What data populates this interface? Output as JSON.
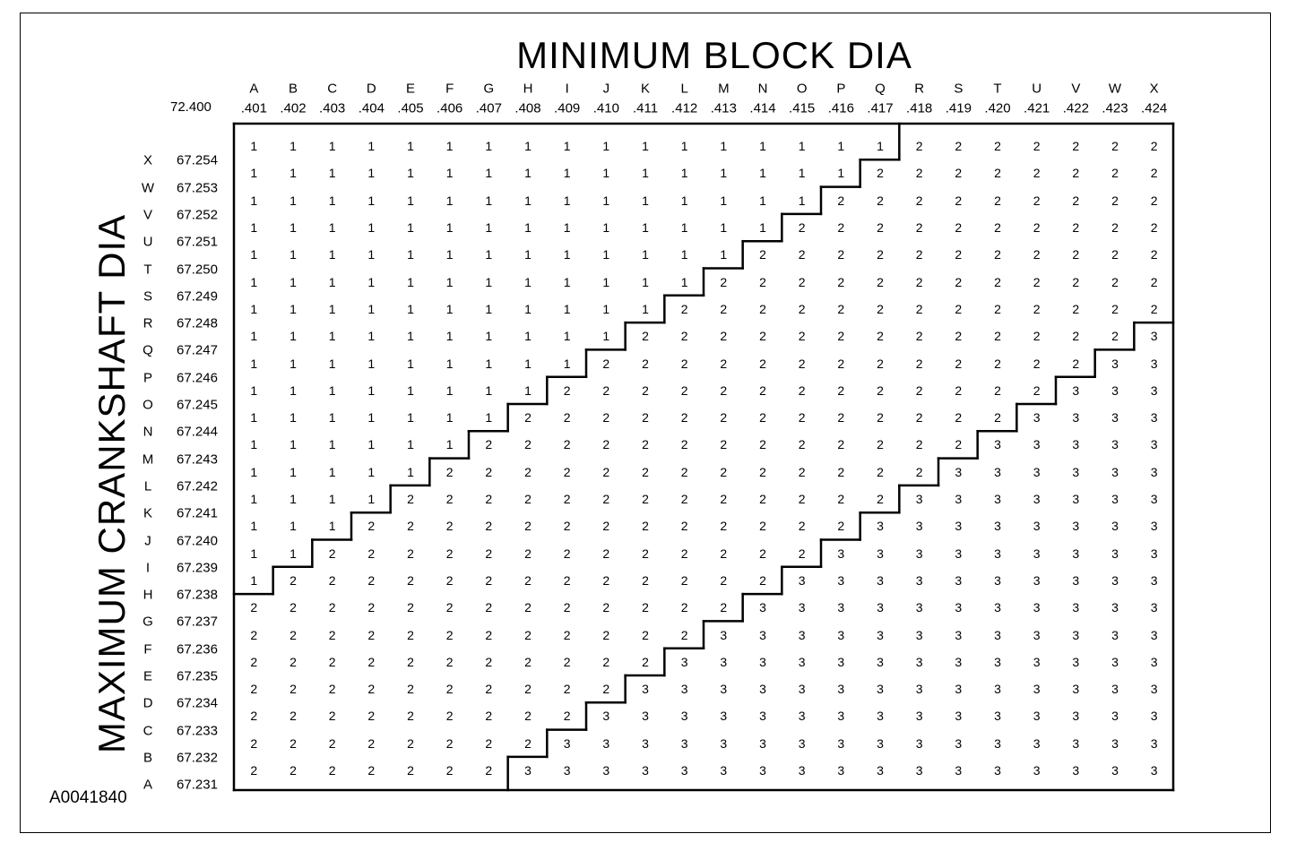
{
  "title": "MINIMUM BLOCK DIA",
  "vertical_title": "MAXIMUM CRANKSHAFT DIA",
  "figure_id": "A0041840",
  "block_base": "72.400",
  "columns": [
    {
      "letter": "A",
      "value": ".401"
    },
    {
      "letter": "B",
      "value": ".402"
    },
    {
      "letter": "C",
      "value": ".403"
    },
    {
      "letter": "D",
      "value": ".404"
    },
    {
      "letter": "E",
      "value": ".405"
    },
    {
      "letter": "F",
      "value": ".406"
    },
    {
      "letter": "G",
      "value": ".407"
    },
    {
      "letter": "H",
      "value": ".408"
    },
    {
      "letter": "I",
      "value": ".409"
    },
    {
      "letter": "J",
      "value": ".410"
    },
    {
      "letter": "K",
      "value": ".411"
    },
    {
      "letter": "L",
      "value": ".412"
    },
    {
      "letter": "M",
      "value": ".413"
    },
    {
      "letter": "N",
      "value": ".414"
    },
    {
      "letter": "O",
      "value": ".415"
    },
    {
      "letter": "P",
      "value": ".416"
    },
    {
      "letter": "Q",
      "value": ".417"
    },
    {
      "letter": "R",
      "value": ".418"
    },
    {
      "letter": "S",
      "value": ".419"
    },
    {
      "letter": "T",
      "value": ".420"
    },
    {
      "letter": "U",
      "value": ".421"
    },
    {
      "letter": "V",
      "value": ".422"
    },
    {
      "letter": "W",
      "value": ".423"
    },
    {
      "letter": "X",
      "value": ".424"
    }
  ],
  "rows": [
    {
      "letter": "X",
      "value": "67.254"
    },
    {
      "letter": "W",
      "value": "67.253"
    },
    {
      "letter": "V",
      "value": "67.252"
    },
    {
      "letter": "U",
      "value": "67.251"
    },
    {
      "letter": "T",
      "value": "67.250"
    },
    {
      "letter": "S",
      "value": "67.249"
    },
    {
      "letter": "R",
      "value": "67.248"
    },
    {
      "letter": "Q",
      "value": "67.247"
    },
    {
      "letter": "P",
      "value": "67.246"
    },
    {
      "letter": "O",
      "value": "67.245"
    },
    {
      "letter": "N",
      "value": "67.244"
    },
    {
      "letter": "M",
      "value": "67.243"
    },
    {
      "letter": "L",
      "value": "67.242"
    },
    {
      "letter": "K",
      "value": "67.241"
    },
    {
      "letter": "J",
      "value": "67.240"
    },
    {
      "letter": "I",
      "value": "67.239"
    },
    {
      "letter": "H",
      "value": "67.238"
    },
    {
      "letter": "G",
      "value": "67.237"
    },
    {
      "letter": "F",
      "value": "67.236"
    },
    {
      "letter": "E",
      "value": "67.235"
    },
    {
      "letter": "D",
      "value": "67.234"
    },
    {
      "letter": "C",
      "value": "67.233"
    },
    {
      "letter": "B",
      "value": "67.232"
    },
    {
      "letter": "A",
      "value": "67.231"
    }
  ],
  "grid": [
    [
      1,
      1,
      1,
      1,
      1,
      1,
      1,
      1,
      1,
      1,
      1,
      1,
      1,
      1,
      1,
      1,
      1,
      2,
      2,
      2,
      2,
      2,
      2,
      2
    ],
    [
      1,
      1,
      1,
      1,
      1,
      1,
      1,
      1,
      1,
      1,
      1,
      1,
      1,
      1,
      1,
      1,
      2,
      2,
      2,
      2,
      2,
      2,
      2,
      2
    ],
    [
      1,
      1,
      1,
      1,
      1,
      1,
      1,
      1,
      1,
      1,
      1,
      1,
      1,
      1,
      1,
      2,
      2,
      2,
      2,
      2,
      2,
      2,
      2,
      2
    ],
    [
      1,
      1,
      1,
      1,
      1,
      1,
      1,
      1,
      1,
      1,
      1,
      1,
      1,
      1,
      2,
      2,
      2,
      2,
      2,
      2,
      2,
      2,
      2,
      2
    ],
    [
      1,
      1,
      1,
      1,
      1,
      1,
      1,
      1,
      1,
      1,
      1,
      1,
      1,
      2,
      2,
      2,
      2,
      2,
      2,
      2,
      2,
      2,
      2,
      2
    ],
    [
      1,
      1,
      1,
      1,
      1,
      1,
      1,
      1,
      1,
      1,
      1,
      1,
      2,
      2,
      2,
      2,
      2,
      2,
      2,
      2,
      2,
      2,
      2,
      2
    ],
    [
      1,
      1,
      1,
      1,
      1,
      1,
      1,
      1,
      1,
      1,
      1,
      2,
      2,
      2,
      2,
      2,
      2,
      2,
      2,
      2,
      2,
      2,
      2,
      2
    ],
    [
      1,
      1,
      1,
      1,
      1,
      1,
      1,
      1,
      1,
      1,
      2,
      2,
      2,
      2,
      2,
      2,
      2,
      2,
      2,
      2,
      2,
      2,
      2,
      3
    ],
    [
      1,
      1,
      1,
      1,
      1,
      1,
      1,
      1,
      1,
      2,
      2,
      2,
      2,
      2,
      2,
      2,
      2,
      2,
      2,
      2,
      2,
      2,
      3,
      3
    ],
    [
      1,
      1,
      1,
      1,
      1,
      1,
      1,
      1,
      2,
      2,
      2,
      2,
      2,
      2,
      2,
      2,
      2,
      2,
      2,
      2,
      2,
      3,
      3,
      3
    ],
    [
      1,
      1,
      1,
      1,
      1,
      1,
      1,
      2,
      2,
      2,
      2,
      2,
      2,
      2,
      2,
      2,
      2,
      2,
      2,
      2,
      3,
      3,
      3,
      3
    ],
    [
      1,
      1,
      1,
      1,
      1,
      1,
      2,
      2,
      2,
      2,
      2,
      2,
      2,
      2,
      2,
      2,
      2,
      2,
      2,
      3,
      3,
      3,
      3,
      3
    ],
    [
      1,
      1,
      1,
      1,
      1,
      2,
      2,
      2,
      2,
      2,
      2,
      2,
      2,
      2,
      2,
      2,
      2,
      2,
      3,
      3,
      3,
      3,
      3,
      3
    ],
    [
      1,
      1,
      1,
      1,
      2,
      2,
      2,
      2,
      2,
      2,
      2,
      2,
      2,
      2,
      2,
      2,
      2,
      3,
      3,
      3,
      3,
      3,
      3,
      3
    ],
    [
      1,
      1,
      1,
      2,
      2,
      2,
      2,
      2,
      2,
      2,
      2,
      2,
      2,
      2,
      2,
      2,
      3,
      3,
      3,
      3,
      3,
      3,
      3,
      3
    ],
    [
      1,
      1,
      2,
      2,
      2,
      2,
      2,
      2,
      2,
      2,
      2,
      2,
      2,
      2,
      2,
      3,
      3,
      3,
      3,
      3,
      3,
      3,
      3,
      3
    ],
    [
      1,
      2,
      2,
      2,
      2,
      2,
      2,
      2,
      2,
      2,
      2,
      2,
      2,
      2,
      3,
      3,
      3,
      3,
      3,
      3,
      3,
      3,
      3,
      3
    ],
    [
      2,
      2,
      2,
      2,
      2,
      2,
      2,
      2,
      2,
      2,
      2,
      2,
      2,
      3,
      3,
      3,
      3,
      3,
      3,
      3,
      3,
      3,
      3,
      3
    ],
    [
      2,
      2,
      2,
      2,
      2,
      2,
      2,
      2,
      2,
      2,
      2,
      2,
      3,
      3,
      3,
      3,
      3,
      3,
      3,
      3,
      3,
      3,
      3,
      3
    ],
    [
      2,
      2,
      2,
      2,
      2,
      2,
      2,
      2,
      2,
      2,
      2,
      3,
      3,
      3,
      3,
      3,
      3,
      3,
      3,
      3,
      3,
      3,
      3,
      3
    ],
    [
      2,
      2,
      2,
      2,
      2,
      2,
      2,
      2,
      2,
      2,
      3,
      3,
      3,
      3,
      3,
      3,
      3,
      3,
      3,
      3,
      3,
      3,
      3,
      3
    ],
    [
      2,
      2,
      2,
      2,
      2,
      2,
      2,
      2,
      2,
      3,
      3,
      3,
      3,
      3,
      3,
      3,
      3,
      3,
      3,
      3,
      3,
      3,
      3,
      3
    ],
    [
      2,
      2,
      2,
      2,
      2,
      2,
      2,
      2,
      3,
      3,
      3,
      3,
      3,
      3,
      3,
      3,
      3,
      3,
      3,
      3,
      3,
      3,
      3,
      3
    ],
    [
      2,
      2,
      2,
      2,
      2,
      2,
      2,
      3,
      3,
      3,
      3,
      3,
      3,
      3,
      3,
      3,
      3,
      3,
      3,
      3,
      3,
      3,
      3,
      3
    ]
  ]
}
